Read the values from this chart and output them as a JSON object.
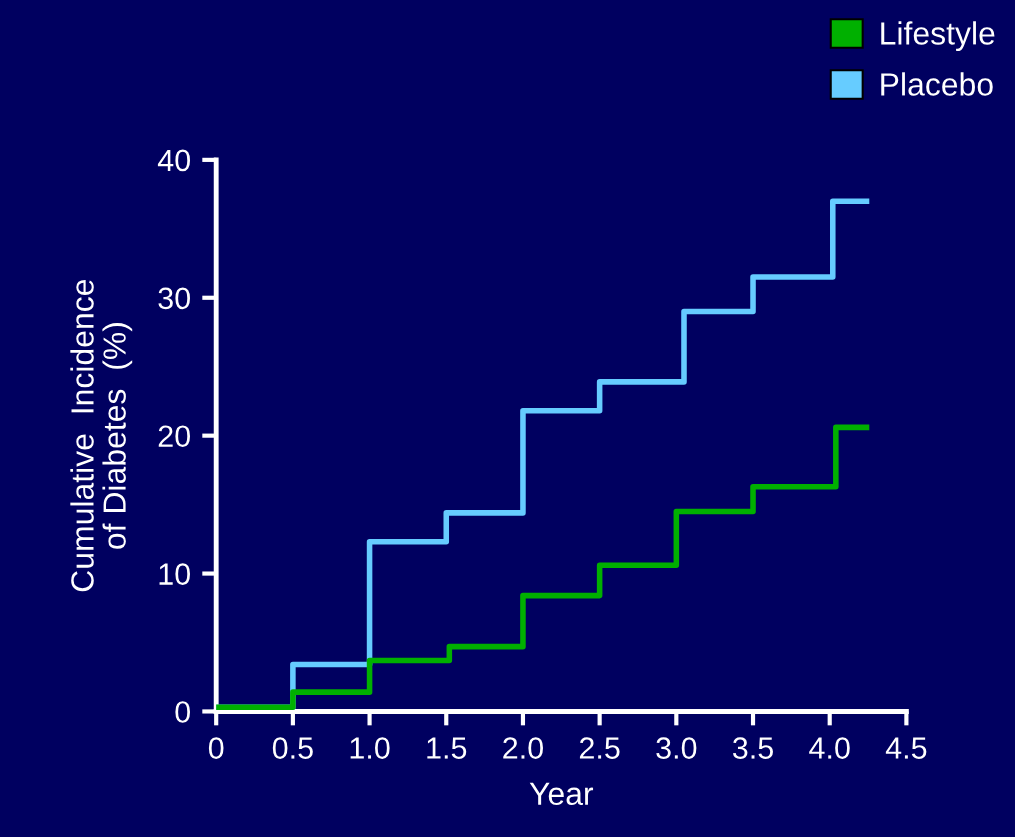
{
  "chart_data": {
    "type": "step",
    "xlabel": "Year",
    "ylabel": "Cumulative  Incidence\nof Diabetes  (%)",
    "xlim": [
      0,
      4.5
    ],
    "xticks": [
      0,
      {
        "value": 0.5,
        "label": "0.5"
      },
      {
        "value": 1,
        "label": "1.0"
      },
      {
        "value": 1.5,
        "label": "1.5"
      },
      {
        "value": 2,
        "label": "2.0"
      },
      {
        "value": 2.5,
        "label": "2.5"
      },
      {
        "value": 3,
        "label": "3.0"
      },
      {
        "value": 3.5,
        "label": "3.5"
      },
      {
        "value": 4,
        "label": "4.0"
      },
      {
        "value": 4.5,
        "label": "4.5"
      }
    ],
    "ylim": [
      0,
      40
    ],
    "yticks": [
      0,
      10,
      20,
      30,
      40
    ],
    "grid": false,
    "legend": "top right",
    "marker": "none",
    "line_style": "solid",
    "series": [
      {
        "name": "Lifestyle",
        "color": "#00b000",
        "x": [
          0,
          0.5,
          1.0,
          1.52,
          2.0,
          2.5,
          3.0,
          3.5,
          4.04,
          4.24
        ],
        "values": [
          0.3,
          1.4,
          3.7,
          4.7,
          8.4,
          10.6,
          14.5,
          16.3,
          20.6,
          20.6
        ]
      },
      {
        "name": "Placebo",
        "color": "#66ccff",
        "x": [
          0,
          0.5,
          1.0,
          1.5,
          2.0,
          2.5,
          3.05,
          3.5,
          4.02,
          4.24
        ],
        "values": [
          0.3,
          3.4,
          12.3,
          14.4,
          21.8,
          23.9,
          29.0,
          31.5,
          37.0,
          37.0
        ]
      }
    ]
  }
}
